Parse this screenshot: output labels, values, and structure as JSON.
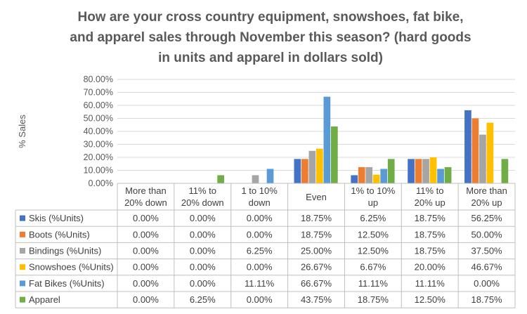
{
  "chart_data": {
    "type": "bar",
    "title_lines": [
      "How are your cross country equipment, snowshoes, fat bike,",
      "and apparel sales through November this season? (hard goods",
      "in units and apparel in dollars sold)"
    ],
    "ylabel": "% Sales",
    "ylim": [
      0,
      80
    ],
    "ytick_step": 10,
    "ytick_labels": [
      "0.00%",
      "10.00%",
      "20.00%",
      "30.00%",
      "40.00%",
      "50.00%",
      "60.00%",
      "70.00%",
      "80.00%"
    ],
    "grid": true,
    "legend": "data-table",
    "categories": [
      [
        "More than",
        "20% down"
      ],
      [
        "11% to",
        "20% down"
      ],
      [
        "1 to 10%",
        "down"
      ],
      [
        "Even"
      ],
      [
        "1% to 10%",
        "up"
      ],
      [
        "11% to",
        "20% up"
      ],
      [
        "More than",
        "20% up"
      ]
    ],
    "series": [
      {
        "name": "Skis (%Units)",
        "color": "#4472C4",
        "values": [
          0.0,
          0.0,
          0.0,
          18.75,
          6.25,
          18.75,
          56.25
        ],
        "labels": [
          "0.00%",
          "0.00%",
          "0.00%",
          "18.75%",
          "6.25%",
          "18.75%",
          "56.25%"
        ]
      },
      {
        "name": "Boots (%Units)",
        "color": "#ED7D31",
        "values": [
          0.0,
          0.0,
          0.0,
          18.75,
          12.5,
          18.75,
          50.0
        ],
        "labels": [
          "0.00%",
          "0.00%",
          "0.00%",
          "18.75%",
          "12.50%",
          "18.75%",
          "50.00%"
        ]
      },
      {
        "name": "Bindings (%Units)",
        "color": "#A5A5A5",
        "values": [
          0.0,
          0.0,
          6.25,
          25.0,
          12.5,
          18.75,
          37.5
        ],
        "labels": [
          "0.00%",
          "0.00%",
          "6.25%",
          "25.00%",
          "12.50%",
          "18.75%",
          "37.50%"
        ]
      },
      {
        "name": "Snowshoes (%Units)",
        "color": "#FFC000",
        "values": [
          0.0,
          0.0,
          0.0,
          26.67,
          6.67,
          20.0,
          46.67
        ],
        "labels": [
          "0.00%",
          "0.00%",
          "0.00%",
          "26.67%",
          "6.67%",
          "20.00%",
          "46.67%"
        ]
      },
      {
        "name": "Fat Bikes (%Units)",
        "color": "#5B9BD5",
        "values": [
          0.0,
          0.0,
          11.11,
          66.67,
          11.11,
          11.11,
          0.0
        ],
        "labels": [
          "0.00%",
          "0.00%",
          "11.11%",
          "66.67%",
          "11.11%",
          "11.11%",
          "0.00%"
        ]
      },
      {
        "name": "Apparel",
        "color": "#70AD47",
        "values": [
          0.0,
          6.25,
          0.0,
          43.75,
          18.75,
          12.5,
          18.75
        ],
        "labels": [
          "0.00%",
          "6.25%",
          "0.00%",
          "43.75%",
          "18.75%",
          "12.50%",
          "18.75%"
        ]
      }
    ]
  }
}
